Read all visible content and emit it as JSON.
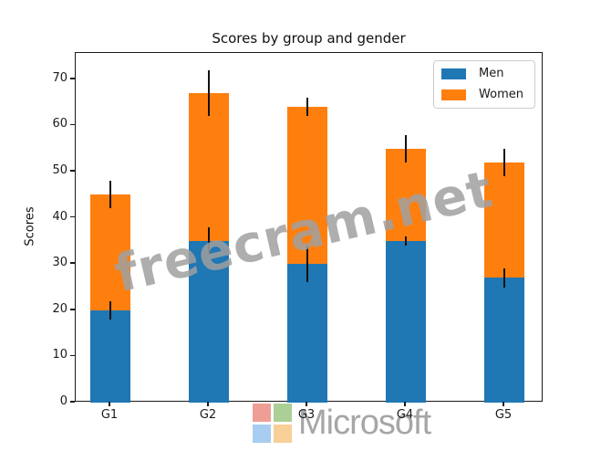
{
  "chart_data": {
    "type": "bar",
    "stacked": true,
    "title": "Scores by group and gender",
    "xlabel": "",
    "ylabel": "Scores",
    "categories": [
      "G1",
      "G2",
      "G3",
      "G4",
      "G5"
    ],
    "series": [
      {
        "name": "Men",
        "color": "#1f77b4",
        "values": [
          20,
          35,
          30,
          35,
          27
        ],
        "std": [
          2,
          3,
          4,
          1,
          2
        ]
      },
      {
        "name": "Women",
        "color": "#ff7f0e",
        "values": [
          25,
          32,
          34,
          20,
          25
        ],
        "std": [
          3,
          5,
          2,
          3,
          3
        ]
      }
    ],
    "yticks": [
      0,
      10,
      20,
      30,
      40,
      50,
      60,
      70
    ],
    "ylim": [
      0,
      75.7
    ],
    "grid": false,
    "legend_position": "upper right",
    "error_bar_color": "#111111"
  },
  "legend": {
    "items": [
      {
        "label": "Men",
        "color": "#1f77b4"
      },
      {
        "label": "Women",
        "color": "#ff7f0e"
      }
    ]
  },
  "watermark": {
    "text": "freecram.net",
    "color": "#a0a0a0"
  },
  "logo": {
    "text": "Microsoft",
    "text_color": "#a6a6a6",
    "squares": [
      {
        "name": "red-square",
        "color": "#ef9e96"
      },
      {
        "name": "green-square",
        "color": "#abcf96"
      },
      {
        "name": "blue-square",
        "color": "#a8cdf0"
      },
      {
        "name": "yellow-square",
        "color": "#f8cf96"
      }
    ]
  }
}
